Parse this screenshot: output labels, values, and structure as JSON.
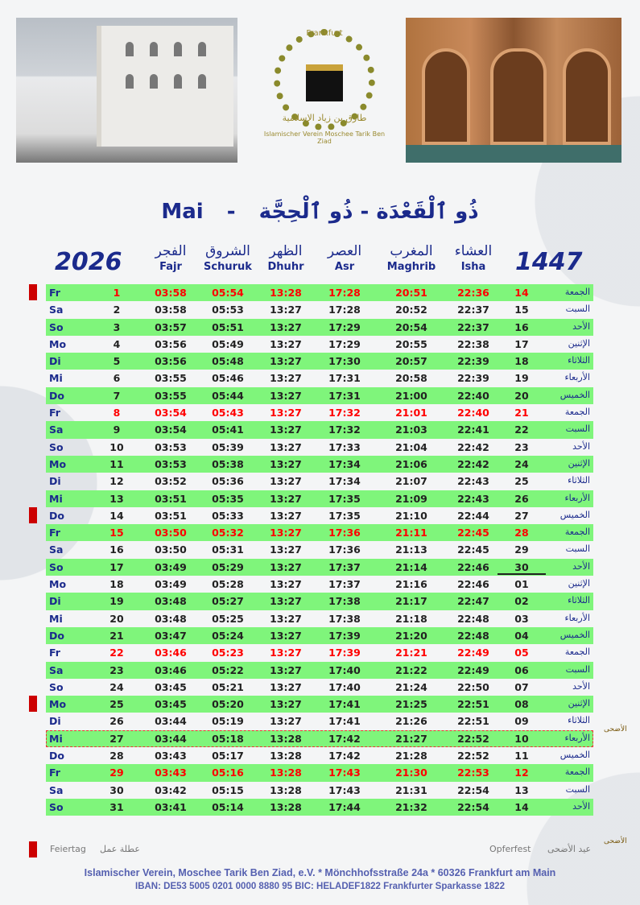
{
  "logo": {
    "city": "Frankfurt",
    "arabic": "طارق بن زياد الإسلامية",
    "latin": "Islamischer Verein Moschee Tarik Ben Ziad"
  },
  "title": {
    "month": "Mai",
    "sep": "-",
    "hijri": "ذُو ٱلْقَعْدَة - ذُو ٱلْحِجَّة"
  },
  "year_greg": "2026",
  "year_hijri": "1447",
  "headers": [
    {
      "ar": "الفجر",
      "lat": "Fajr"
    },
    {
      "ar": "الشروق",
      "lat": "Schuruk"
    },
    {
      "ar": "الظهر",
      "lat": "Dhuhr"
    },
    {
      "ar": "العصر",
      "lat": "Asr"
    },
    {
      "ar": "المغرب",
      "lat": "Maghrib"
    },
    {
      "ar": "العشاء",
      "lat": "Isha"
    }
  ],
  "weekday_ar": {
    "Fr": "الجمعة",
    "Sa": "السبت",
    "So": "الأحد",
    "Mo": "الإثنين",
    "Di": "الثلاثاء",
    "Mi": "الأربعاء",
    "Do": "الخميس"
  },
  "rows": [
    [
      "Fr",
      "1",
      "03:58",
      "05:54",
      "13:28",
      "17:28",
      "20:51",
      "22:36",
      "14"
    ],
    [
      "Sa",
      "2",
      "03:58",
      "05:53",
      "13:27",
      "17:28",
      "20:52",
      "22:37",
      "15"
    ],
    [
      "So",
      "3",
      "03:57",
      "05:51",
      "13:27",
      "17:29",
      "20:54",
      "22:37",
      "16"
    ],
    [
      "Mo",
      "4",
      "03:56",
      "05:49",
      "13:27",
      "17:29",
      "20:55",
      "22:38",
      "17"
    ],
    [
      "Di",
      "5",
      "03:56",
      "05:48",
      "13:27",
      "17:30",
      "20:57",
      "22:39",
      "18"
    ],
    [
      "Mi",
      "6",
      "03:55",
      "05:46",
      "13:27",
      "17:31",
      "20:58",
      "22:39",
      "19"
    ],
    [
      "Do",
      "7",
      "03:55",
      "05:44",
      "13:27",
      "17:31",
      "21:00",
      "22:40",
      "20"
    ],
    [
      "Fr",
      "8",
      "03:54",
      "05:43",
      "13:27",
      "17:32",
      "21:01",
      "22:40",
      "21"
    ],
    [
      "Sa",
      "9",
      "03:54",
      "05:41",
      "13:27",
      "17:32",
      "21:03",
      "22:41",
      "22"
    ],
    [
      "So",
      "10",
      "03:53",
      "05:39",
      "13:27",
      "17:33",
      "21:04",
      "22:42",
      "23"
    ],
    [
      "Mo",
      "11",
      "03:53",
      "05:38",
      "13:27",
      "17:34",
      "21:06",
      "22:42",
      "24"
    ],
    [
      "Di",
      "12",
      "03:52",
      "05:36",
      "13:27",
      "17:34",
      "21:07",
      "22:43",
      "25"
    ],
    [
      "Mi",
      "13",
      "03:51",
      "05:35",
      "13:27",
      "17:35",
      "21:09",
      "22:43",
      "26"
    ],
    [
      "Do",
      "14",
      "03:51",
      "05:33",
      "13:27",
      "17:35",
      "21:10",
      "22:44",
      "27"
    ],
    [
      "Fr",
      "15",
      "03:50",
      "05:32",
      "13:27",
      "17:36",
      "21:11",
      "22:45",
      "28"
    ],
    [
      "Sa",
      "16",
      "03:50",
      "05:31",
      "13:27",
      "17:36",
      "21:13",
      "22:45",
      "29"
    ],
    [
      "So",
      "17",
      "03:49",
      "05:29",
      "13:27",
      "17:37",
      "21:14",
      "22:46",
      "30"
    ],
    [
      "Mo",
      "18",
      "03:49",
      "05:28",
      "13:27",
      "17:37",
      "21:16",
      "22:46",
      "01"
    ],
    [
      "Di",
      "19",
      "03:48",
      "05:27",
      "13:27",
      "17:38",
      "21:17",
      "22:47",
      "02"
    ],
    [
      "Mi",
      "20",
      "03:48",
      "05:25",
      "13:27",
      "17:38",
      "21:18",
      "22:48",
      "03"
    ],
    [
      "Do",
      "21",
      "03:47",
      "05:24",
      "13:27",
      "17:39",
      "21:20",
      "22:48",
      "04"
    ],
    [
      "Fr",
      "22",
      "03:46",
      "05:23",
      "13:27",
      "17:39",
      "21:21",
      "22:49",
      "05"
    ],
    [
      "Sa",
      "23",
      "03:46",
      "05:22",
      "13:27",
      "17:40",
      "21:22",
      "22:49",
      "06"
    ],
    [
      "So",
      "24",
      "03:45",
      "05:21",
      "13:27",
      "17:40",
      "21:24",
      "22:50",
      "07"
    ],
    [
      "Mo",
      "25",
      "03:45",
      "05:20",
      "13:27",
      "17:41",
      "21:25",
      "22:51",
      "08"
    ],
    [
      "Di",
      "26",
      "03:44",
      "05:19",
      "13:27",
      "17:41",
      "21:26",
      "22:51",
      "09"
    ],
    [
      "Mi",
      "27",
      "03:44",
      "05:18",
      "13:28",
      "17:42",
      "21:27",
      "22:52",
      "10"
    ],
    [
      "Do",
      "28",
      "03:43",
      "05:17",
      "13:28",
      "17:42",
      "21:28",
      "22:52",
      "11"
    ],
    [
      "Fr",
      "29",
      "03:43",
      "05:16",
      "13:28",
      "17:43",
      "21:30",
      "22:53",
      "12"
    ],
    [
      "Sa",
      "30",
      "03:42",
      "05:15",
      "13:28",
      "17:43",
      "21:31",
      "22:54",
      "13"
    ],
    [
      "So",
      "31",
      "03:41",
      "05:14",
      "13:28",
      "17:44",
      "21:32",
      "22:54",
      "14"
    ]
  ],
  "holiday_days": [
    "1",
    "14",
    "25"
  ],
  "eid_day": "27",
  "month_end_hijri_day": "17",
  "colors": {
    "green_row": "#7ff57b",
    "friday": "#ff0000",
    "navy": "#1b2a8c",
    "holiday": "#cc0000"
  },
  "legend": {
    "holiday_de": "Feiertag",
    "holiday_ar": "عطلة عمل",
    "eid_de": "Opferfest",
    "eid_ar": "عيد الأضحى",
    "eid_icon_text": "الأضحى"
  },
  "footer": {
    "line1": "Islamischer Verein, Moschee Tarik Ben Ziad, e.V. * Mönchhofsstraße 24a * 60326 Frankfurt am Main",
    "line2": "IBAN: DE53 5005 0201 0000 8880 95   BIC: HELADEF1822  Frankfurter Sparkasse 1822"
  }
}
